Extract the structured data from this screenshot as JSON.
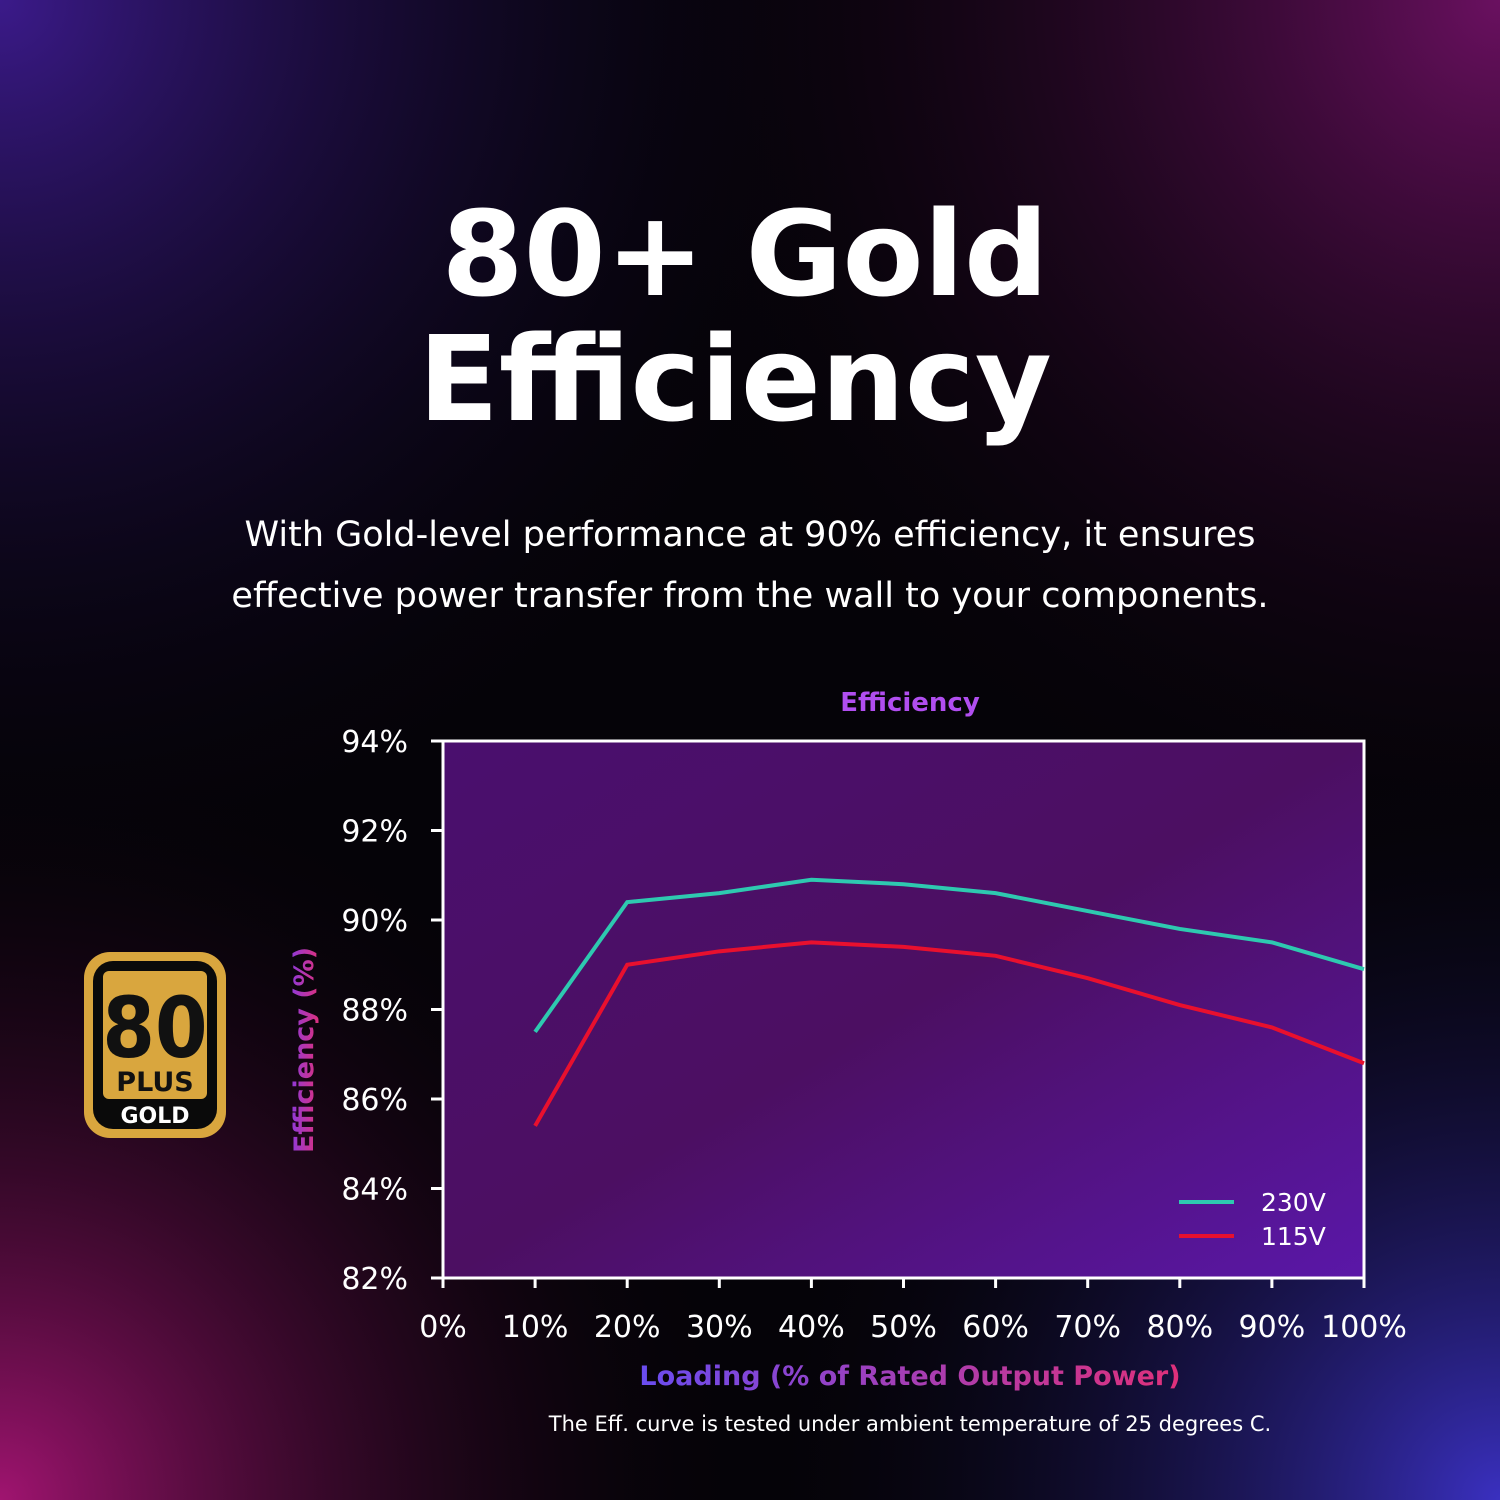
{
  "headline": [
    "80+ Gold",
    "Efficiency"
  ],
  "description": [
    "With Gold-level performance at 90% efficiency, it ensures",
    "effective power transfer from the wall to your components."
  ],
  "badge": {
    "number": "80",
    "brand": "PLUS",
    "level": "GOLD"
  },
  "chart_data": {
    "type": "line",
    "title": "Efficiency",
    "x_label": "Loading (% of Rated Output Power)",
    "y_label": "Efficiency (%)",
    "note": "The Eff. curve is tested under ambient temperature of 25 degrees C.",
    "x": [
      10,
      20,
      30,
      40,
      50,
      60,
      70,
      80,
      90,
      100
    ],
    "series": [
      {
        "name": "230V",
        "color": "#2ec9b0",
        "values": [
          87.5,
          90.4,
          90.6,
          90.9,
          90.8,
          90.6,
          90.2,
          89.8,
          89.5,
          88.9
        ]
      },
      {
        "name": "115V",
        "color": "#e8102e",
        "values": [
          85.4,
          89.0,
          89.3,
          89.5,
          89.4,
          89.2,
          88.7,
          88.1,
          87.6,
          86.8
        ]
      }
    ],
    "xlim": [
      0,
      100
    ],
    "xticks": [
      {
        "value": 0,
        "label": "0%"
      },
      {
        "value": 10,
        "label": "10%"
      },
      {
        "value": 20,
        "label": "20%"
      },
      {
        "value": 30,
        "label": "30%"
      },
      {
        "value": 40,
        "label": "40%"
      },
      {
        "value": 50,
        "label": "50%"
      },
      {
        "value": 60,
        "label": "60%"
      },
      {
        "value": 70,
        "label": "70%"
      },
      {
        "value": 80,
        "label": "80%"
      },
      {
        "value": 90,
        "label": "90%"
      },
      {
        "value": 100,
        "label": "100%"
      }
    ],
    "ylim": [
      82,
      94
    ],
    "yticks": [
      {
        "value": 82,
        "label": "82%"
      },
      {
        "value": 84,
        "label": "84%"
      },
      {
        "value": 86,
        "label": "86%"
      },
      {
        "value": 88,
        "label": "88%"
      },
      {
        "value": 90,
        "label": "90%"
      },
      {
        "value": 92,
        "label": "92%"
      },
      {
        "value": 94,
        "label": "94%"
      }
    ],
    "grid": false,
    "legend": "lower right"
  }
}
